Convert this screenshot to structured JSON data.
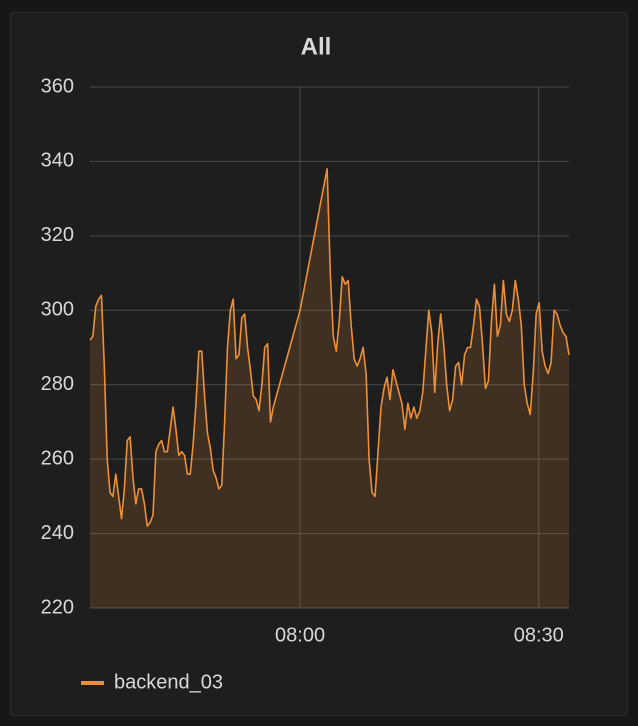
{
  "chart_data": {
    "type": "line",
    "title": "All",
    "x": [
      453.6,
      453.96,
      454.32,
      454.68,
      455.04,
      455.4,
      455.76,
      456.12,
      456.48,
      456.84,
      457.2,
      457.56,
      457.92,
      458.28,
      458.64,
      459.0,
      459.36,
      459.72,
      460.08,
      460.44,
      460.8,
      461.16,
      461.52,
      461.88,
      462.24,
      462.6,
      462.96,
      463.32,
      463.68,
      464.04,
      464.4,
      464.76,
      465.12,
      465.48,
      465.84,
      466.2,
      466.56,
      466.92,
      467.28,
      467.64,
      468.0,
      468.36,
      468.72,
      469.08,
      469.44,
      469.8,
      470.16,
      470.52,
      470.88,
      471.24,
      471.6,
      471.96,
      472.32,
      472.68,
      473.04,
      473.4,
      473.76,
      474.12,
      474.48,
      474.84,
      475.2,
      475.56,
      475.92,
      476.28,
      476.64,
      480.0,
      483.4,
      483.8,
      484.175,
      484.55,
      484.925,
      485.3,
      485.675,
      486.05,
      486.425,
      486.8,
      487.175,
      487.55,
      487.925,
      488.3,
      488.675,
      489.05,
      489.425,
      489.8,
      490.175,
      490.55,
      490.925,
      491.3,
      491.675,
      492.05,
      492.425,
      492.8,
      493.175,
      493.55,
      493.925,
      494.3,
      494.675,
      495.05,
      495.425,
      495.8,
      496.175,
      496.55,
      496.925,
      497.3,
      497.675,
      498.05,
      498.425,
      498.8,
      499.175,
      499.55,
      499.925,
      500.3,
      500.675,
      501.05,
      501.425,
      501.8,
      502.175,
      502.55,
      502.925,
      503.3,
      503.675,
      504.05,
      504.425,
      504.8,
      505.175,
      505.55,
      505.925,
      506.3,
      506.675,
      507.05,
      507.425,
      507.8,
      508.175,
      508.55,
      508.925,
      509.3,
      509.675,
      510.05,
      510.425,
      510.8,
      511.175,
      511.55,
      511.925,
      512.3,
      512.675,
      513.05,
      513.425,
      513.8
    ],
    "series": [
      {
        "name": "backend_03",
        "color": "#ef8f35",
        "values": [
          292,
          293,
          301,
          303,
          304,
          285,
          260,
          251,
          250,
          256,
          250,
          244,
          252,
          265,
          266,
          255,
          248,
          252,
          252,
          248,
          242,
          243,
          245,
          262,
          264,
          265,
          262,
          262,
          268,
          274,
          268,
          261,
          262,
          261,
          256,
          256,
          264,
          275,
          289,
          289,
          277,
          267,
          263,
          257,
          255,
          252,
          253,
          270,
          290,
          300,
          303,
          287,
          288,
          298,
          299,
          290,
          284,
          277,
          276,
          273,
          280,
          290,
          291,
          270,
          274,
          300,
          338,
          310,
          293,
          289,
          297,
          309,
          307,
          308,
          296,
          287,
          285,
          287,
          290,
          283,
          260,
          251,
          250,
          262,
          274,
          279,
          282,
          276,
          284,
          281,
          278,
          275,
          268,
          275,
          271,
          274,
          271,
          273,
          278,
          289,
          300,
          294,
          278,
          291,
          299,
          291,
          280,
          273,
          276,
          285,
          286,
          280,
          288,
          290,
          290,
          296,
          303,
          301,
          291,
          279,
          281,
          297,
          307,
          293,
          296,
          308,
          299,
          297,
          300,
          308,
          303,
          296,
          280,
          275,
          272,
          283,
          299,
          302,
          289,
          285,
          283,
          286,
          300,
          299,
          296,
          294,
          293,
          288
        ]
      }
    ],
    "xlim": [
      453.6,
      513.8
    ],
    "xticks": [
      {
        "value": 480,
        "label": "08:00"
      },
      {
        "value": 510,
        "label": "08:30"
      }
    ],
    "ylim": [
      220,
      360
    ],
    "yticks": [
      220,
      240,
      260,
      280,
      300,
      320,
      340,
      360
    ],
    "grid": true
  }
}
